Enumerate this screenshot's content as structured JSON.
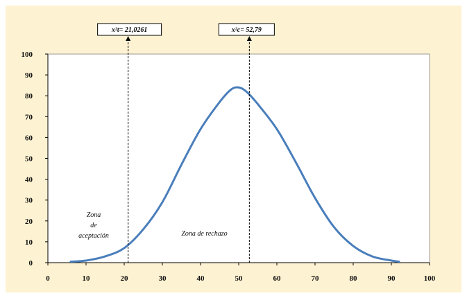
{
  "colors": {
    "page_bg": "#ffffff",
    "frame_bg": "#fdf2d2",
    "plot_bg": "#ffffff",
    "curve": "#4a7ebb",
    "axis": "#000000"
  },
  "chart_data": {
    "type": "line",
    "title": "",
    "xlabel": "",
    "ylabel": "",
    "xlim": [
      0,
      100
    ],
    "ylim": [
      0,
      100
    ],
    "x_ticks": [
      0,
      10,
      20,
      30,
      40,
      50,
      60,
      70,
      80,
      90,
      100
    ],
    "y_ticks": [
      0,
      10,
      20,
      30,
      40,
      50,
      60,
      70,
      80,
      90,
      100
    ],
    "grid": false,
    "series": [
      {
        "x": [
          6,
          10,
          15,
          20,
          25,
          30,
          35,
          40,
          45,
          48,
          50,
          52,
          55,
          60,
          65,
          70,
          75,
          80,
          85,
          90,
          92
        ],
        "y": [
          0.5,
          1,
          3,
          7,
          16,
          29,
          47,
          64,
          77,
          83,
          84,
          82,
          76,
          64,
          48,
          31,
          17,
          8,
          3,
          1,
          0.5
        ]
      }
    ],
    "reference_lines": [
      {
        "x": 21.0261,
        "label": "x²t= 21,0261"
      },
      {
        "x": 52.79,
        "label": "x²c=  52,79"
      }
    ],
    "annotations": [
      {
        "lines": [
          "Zona",
          "de",
          "aceptación"
        ],
        "x": 12,
        "y": 20
      },
      {
        "lines": [
          "Zona de rechazo"
        ],
        "x": 41,
        "y": 13
      }
    ]
  }
}
